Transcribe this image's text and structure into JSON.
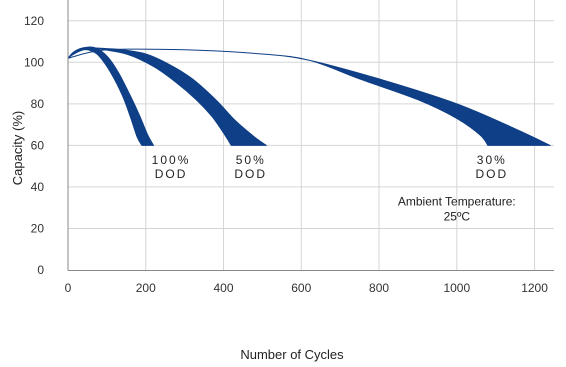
{
  "chart_data": {
    "type": "area",
    "title": "",
    "xlabel": "Number of Cycles",
    "ylabel": "Capacity (%)",
    "xlim": [
      0,
      1250
    ],
    "ylim": [
      0,
      130
    ],
    "x_ticks": [
      0,
      200,
      400,
      600,
      800,
      1000,
      1200
    ],
    "y_ticks": [
      0,
      20,
      40,
      60,
      80,
      100,
      120
    ],
    "grid": true,
    "band_color": "#0f3f86",
    "series": [
      {
        "label_lines": [
          "100%",
          "DOD"
        ],
        "upper": [
          [
            0,
            102
          ],
          [
            15,
            105
          ],
          [
            40,
            107
          ],
          [
            70,
            107
          ],
          [
            100,
            103
          ],
          [
            130,
            95
          ],
          [
            160,
            84
          ],
          [
            185,
            74
          ],
          [
            205,
            65
          ],
          [
            220,
            60
          ]
        ],
        "lower": [
          [
            0,
            102
          ],
          [
            15,
            104
          ],
          [
            40,
            106
          ],
          [
            60,
            105.5
          ],
          [
            80,
            103
          ],
          [
            110,
            95
          ],
          [
            140,
            84
          ],
          [
            160,
            74
          ],
          [
            178,
            64
          ],
          [
            190,
            60
          ]
        ],
        "label_at": [
          265,
          51
        ]
      },
      {
        "label_lines": [
          "50%",
          "DOD"
        ],
        "upper": [
          [
            60,
            107
          ],
          [
            140,
            106
          ],
          [
            200,
            104
          ],
          [
            260,
            99
          ],
          [
            320,
            92
          ],
          [
            380,
            82
          ],
          [
            430,
            72
          ],
          [
            480,
            64
          ],
          [
            510,
            60
          ]
        ],
        "lower": [
          [
            60,
            107
          ],
          [
            150,
            104
          ],
          [
            220,
            98
          ],
          [
            280,
            90
          ],
          [
            330,
            82
          ],
          [
            370,
            74
          ],
          [
            400,
            66
          ],
          [
            420,
            60
          ]
        ],
        "label_at": [
          470,
          51
        ]
      },
      {
        "label_lines": [
          "30%",
          "DOD"
        ],
        "upper": [
          [
            0,
            102
          ],
          [
            100,
            106
          ],
          [
            300,
            106
          ],
          [
            500,
            104
          ],
          [
            620,
            101
          ],
          [
            800,
            92
          ],
          [
            1000,
            80
          ],
          [
            1150,
            68
          ],
          [
            1240,
            60
          ]
        ],
        "lower": [
          [
            0,
            102
          ],
          [
            100,
            106
          ],
          [
            300,
            106
          ],
          [
            500,
            104
          ],
          [
            620,
            101
          ],
          [
            750,
            92
          ],
          [
            900,
            82
          ],
          [
            1000,
            73
          ],
          [
            1060,
            65
          ],
          [
            1080,
            60
          ]
        ],
        "label_at": [
          1090,
          51
        ]
      }
    ],
    "annotation": {
      "lines": [
        "Ambient Temperature:",
        "25ºC"
      ],
      "at": [
        1000,
        31
      ]
    }
  }
}
